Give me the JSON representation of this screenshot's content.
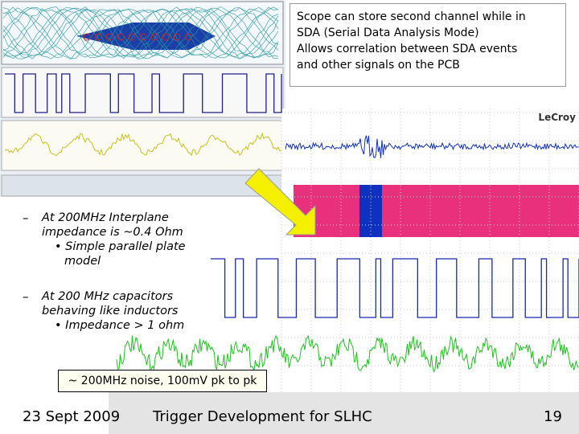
{
  "callout": {
    "lines": [
      "Scope can store second channel while in",
      "SDA (Serial Data Analysis Mode)",
      "Allows correlation between SDA events",
      "and other signals on the PCB"
    ]
  },
  "scope_label": "LeCroy",
  "bullets": [
    {
      "text": "At 200MHz Interplane impedance is ~0.4 Ohm",
      "sub": "Simple parallel plate model"
    },
    {
      "text": "At 200 MHz capacitors behaving like inductors",
      "sub": "Impedance > 1 ohm"
    }
  ],
  "noise_label": "~ 200MHz noise, 100mV pk to pk",
  "footer": {
    "date": "23 Sept 2009",
    "title": "Trigger Development for SLHC",
    "page": "19"
  }
}
